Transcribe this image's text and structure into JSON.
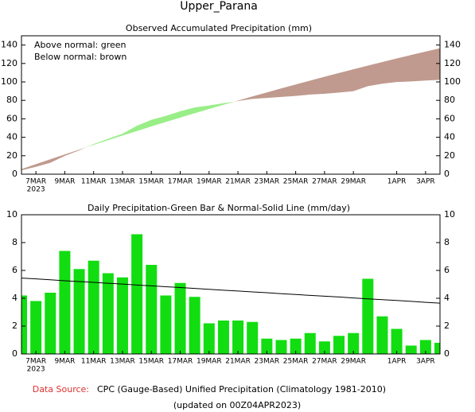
{
  "page_title": "Upper_Parana",
  "source_label": "Data Source:",
  "source": "CPC (Gauge-Based) Unified Precipitation (Climatology 1981-2010)",
  "updated": "(updated on 00Z04APR2023)",
  "chart_data": [
    {
      "type": "area",
      "title": "Observed Accumulated Precipitation (mm)",
      "annotations": [
        "Above normal: green",
        "Below normal: brown"
      ],
      "year_label": "2023",
      "categories": [
        null,
        "7MAR",
        null,
        "9MAR",
        null,
        "11MAR",
        null,
        "13MAR",
        null,
        "15MAR",
        null,
        "17MAR",
        null,
        "19MAR",
        null,
        "21MAR",
        null,
        "23MAR",
        null,
        "25MAR",
        null,
        "27MAR",
        null,
        "29MAR",
        null,
        null,
        "1APR",
        null,
        "3APR",
        null
      ],
      "above_color": "#99ee88",
      "below_color": "#c09a8e",
      "series": [
        {
          "name": "Observed",
          "values": [
            4.2,
            8,
            12.4,
            19.8,
            25.9,
            32.6,
            38.4,
            43.9,
            52.5,
            58.9,
            63.1,
            68.2,
            72.3,
            74.5,
            76.9,
            79.3,
            81.6,
            82.7,
            83.7,
            84.8,
            86.3,
            87.2,
            88.5,
            90,
            95.4,
            98.1,
            99.9,
            100.5,
            101.5,
            102.3
          ]
        },
        {
          "name": "Normal",
          "values": [
            5.45,
            10.84,
            16.17,
            21.43,
            26.63,
            31.77,
            36.85,
            41.87,
            46.82,
            51.71,
            56.54,
            61.31,
            66.02,
            70.66,
            75.24,
            79.76,
            84.22,
            88.62,
            92.95,
            97.22,
            101.43,
            105.58,
            109.67,
            113.69,
            117.65,
            121.55,
            125.39,
            129.17,
            132.88,
            136.53
          ]
        }
      ],
      "ylim": [
        0,
        150
      ],
      "yticks": [
        0,
        20,
        40,
        60,
        80,
        100,
        120,
        140
      ]
    },
    {
      "type": "bar",
      "title": "Daily Precipitation-Green Bar & Normal-Solid Line (mm/day)",
      "year_label": "2023",
      "categories": [
        null,
        "7MAR",
        null,
        "9MAR",
        null,
        "11MAR",
        null,
        "13MAR",
        null,
        "15MAR",
        null,
        "17MAR",
        null,
        "19MAR",
        null,
        "21MAR",
        null,
        "23MAR",
        null,
        "25MAR",
        null,
        "27MAR",
        null,
        "29MAR",
        null,
        null,
        "1APR",
        null,
        "3APR",
        null
      ],
      "series": [
        {
          "name": "Daily",
          "color": "#11dd11",
          "values": [
            4.2,
            3.8,
            4.4,
            7.4,
            6.1,
            6.7,
            5.8,
            5.5,
            8.6,
            6.4,
            4.2,
            5.1,
            4.1,
            2.2,
            2.4,
            2.4,
            2.3,
            1.1,
            1.0,
            1.1,
            1.5,
            0.9,
            1.3,
            1.5,
            5.4,
            2.7,
            1.8,
            0.6,
            1.0,
            0.8
          ]
        },
        {
          "name": "Normal",
          "color": "#000000",
          "values": [
            5.45,
            5.39,
            5.33,
            5.26,
            5.2,
            5.14,
            5.08,
            5.02,
            4.95,
            4.89,
            4.83,
            4.77,
            4.71,
            4.64,
            4.58,
            4.52,
            4.46,
            4.4,
            4.33,
            4.27,
            4.21,
            4.15,
            4.09,
            4.02,
            3.96,
            3.9,
            3.84,
            3.78,
            3.71,
            3.65
          ]
        }
      ],
      "ylim": [
        0,
        10
      ],
      "yticks": [
        0,
        2,
        4,
        6,
        8,
        10
      ]
    }
  ]
}
